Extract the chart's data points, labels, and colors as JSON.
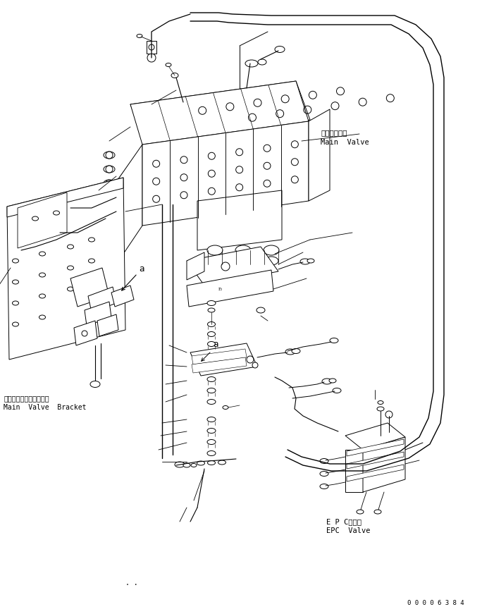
{
  "bg_color": "#ffffff",
  "line_color": "#000000",
  "fig_width": 6.84,
  "fig_height": 8.71,
  "dpi": 100,
  "labels": {
    "main_valve_jp": "メインバルブ",
    "main_valve_en": "Main  Valve",
    "main_valve_bracket_jp": "メインバルブブラケット",
    "main_valve_bracket_en": "Main  Valve  Bracket",
    "epc_valve_jp": "E P Cバルブ",
    "epc_valve_en": "EPC  Valve",
    "part_number": "0 0 0 0 6 3 8 4",
    "label_a1": "a",
    "label_a2": "a",
    "dots": ". ."
  },
  "font_size_label": 7,
  "font_size_partnumber": 6.5
}
